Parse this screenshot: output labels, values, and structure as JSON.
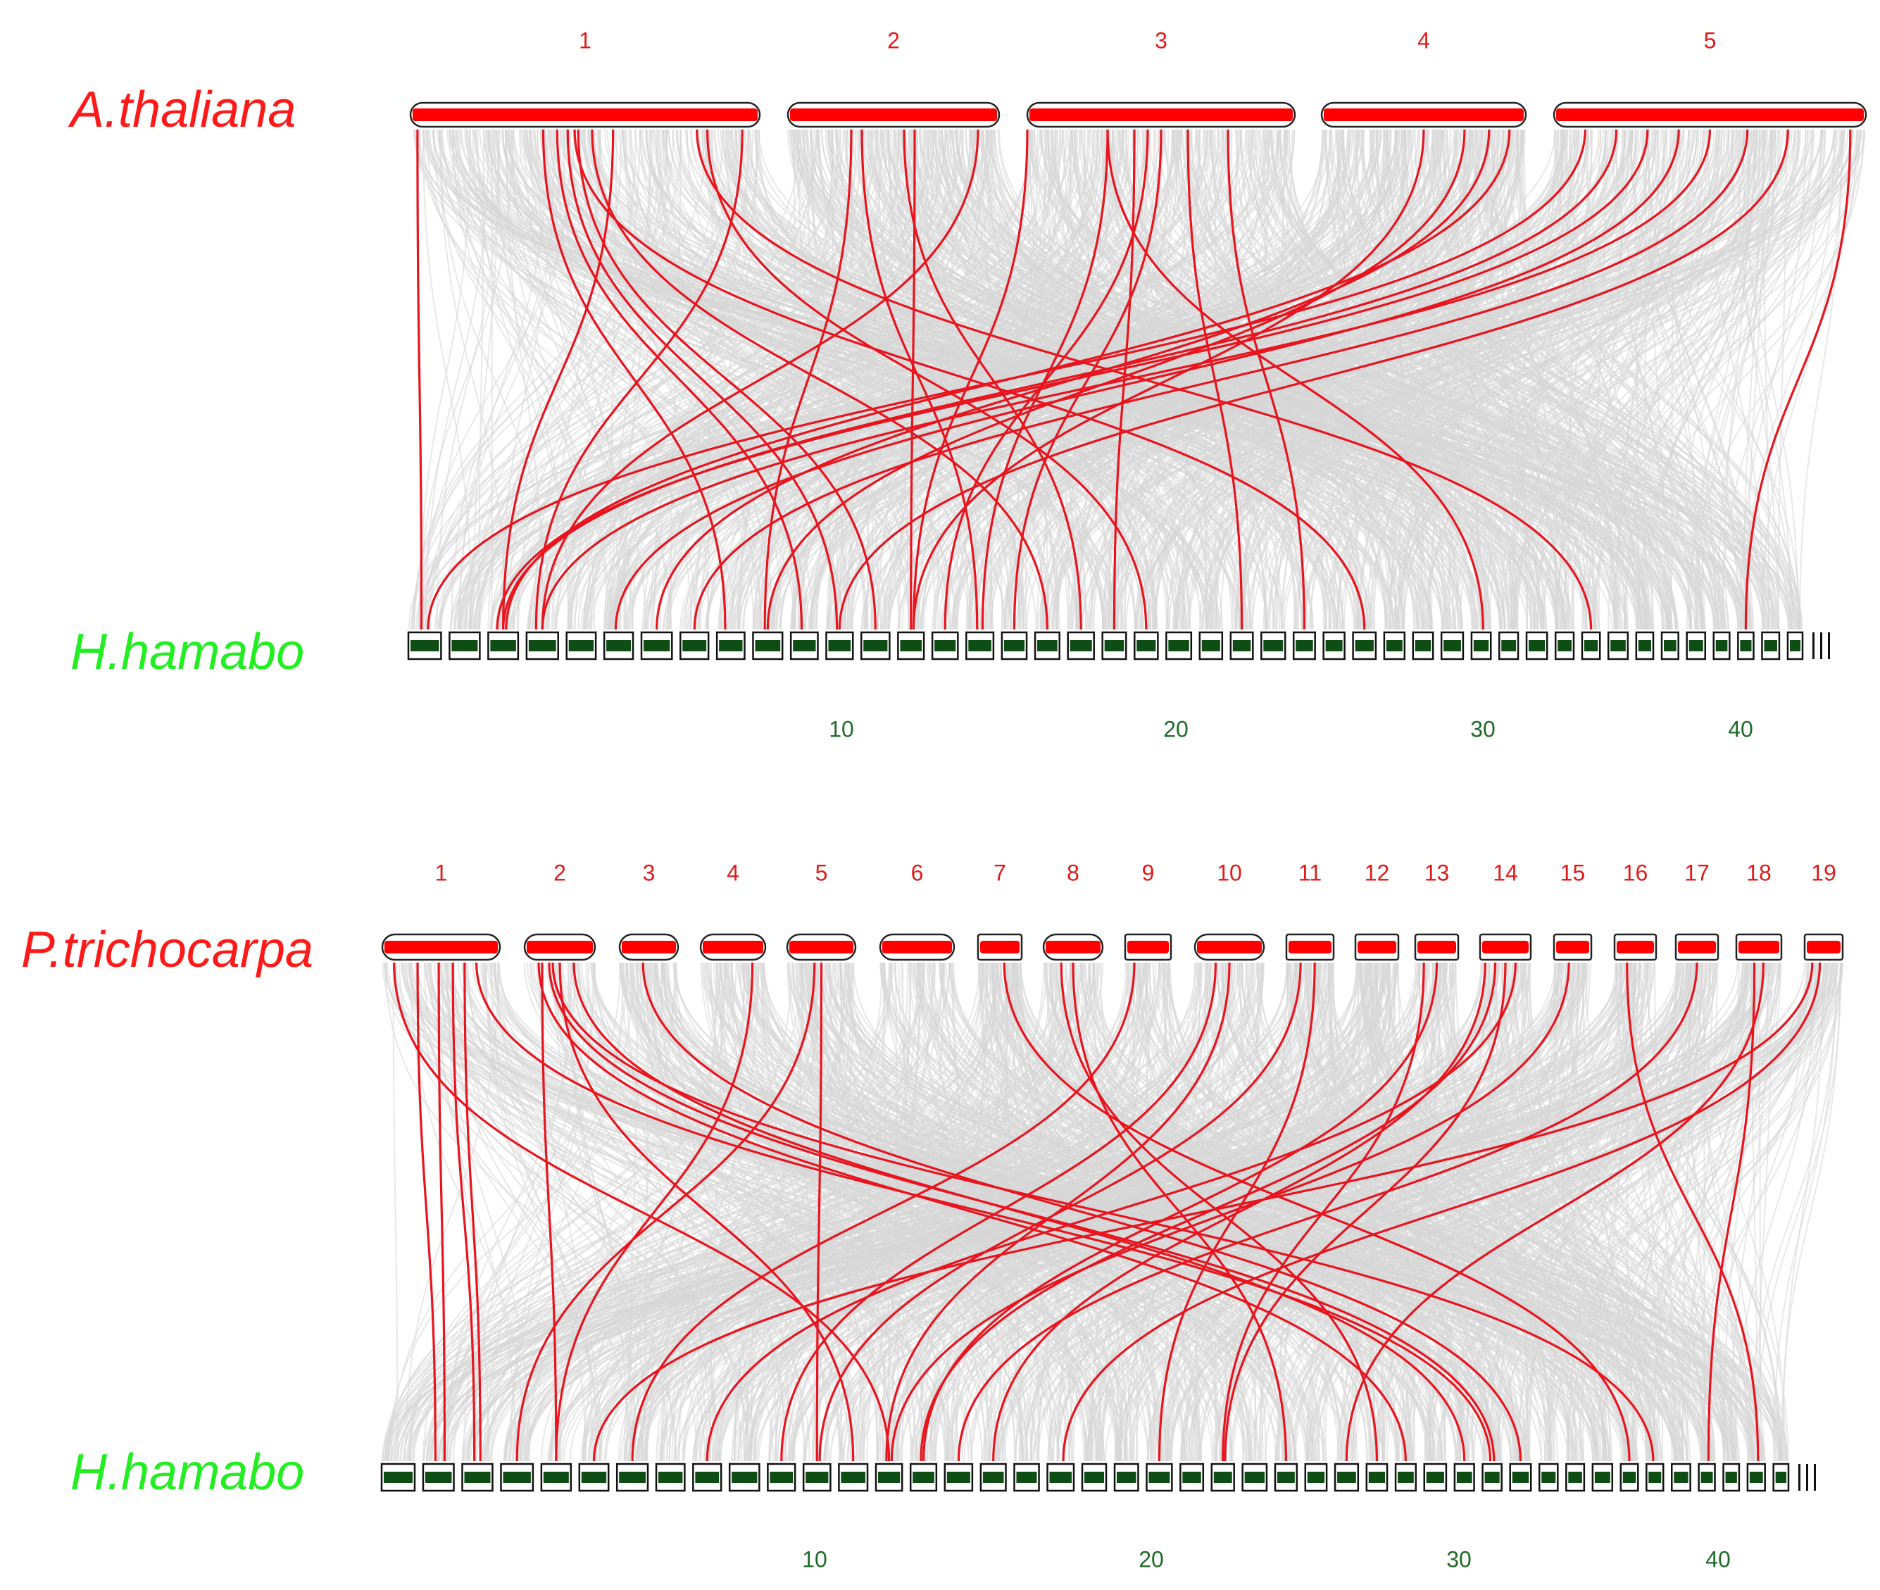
{
  "colors": {
    "species_top": "#ff1a1a",
    "species_bottom": "#22ee22",
    "chrom_top_fill": "#ff0000",
    "chrom_bottom_fill": "#0e4d14",
    "background_link": "#d6d6d6",
    "highlight_link": "#e8141e",
    "top_number": "#e11b1b",
    "bottom_number": "#1f6b2a"
  },
  "panels": [
    {
      "id": "arabidopsis",
      "top_species": "A.thaliana",
      "bottom_species": "H.hamabo",
      "top_chromosomes": [
        "1",
        "2",
        "3",
        "4",
        "5"
      ],
      "bottom_ticks": [
        "10",
        "20",
        "30",
        "40"
      ],
      "highlight_pairs": [
        [
          1,
          0.02,
          1,
          0.4
        ],
        [
          1,
          0.58,
          3,
          0.5
        ],
        [
          1,
          0.95,
          4,
          0.3
        ],
        [
          1,
          0.38,
          9,
          0.3
        ],
        [
          1,
          0.42,
          11,
          0.4
        ],
        [
          1,
          0.45,
          12,
          0.4
        ],
        [
          1,
          0.48,
          13,
          0.5
        ],
        [
          1,
          0.52,
          18,
          0.5
        ],
        [
          1,
          0.85,
          21,
          0.5
        ],
        [
          1,
          0.47,
          28,
          0.5
        ],
        [
          1,
          0.82,
          36,
          0.5
        ],
        [
          2,
          0.3,
          10,
          0.4
        ],
        [
          2,
          0.6,
          14,
          0.5
        ],
        [
          2,
          0.35,
          16,
          0.4
        ],
        [
          2,
          0.55,
          19,
          0.5
        ],
        [
          2,
          0.9,
          4,
          0.5
        ],
        [
          3,
          0.0,
          14,
          0.6
        ],
        [
          3,
          0.3,
          16,
          0.6
        ],
        [
          3,
          0.4,
          20,
          0.5
        ],
        [
          3,
          0.5,
          17,
          0.5
        ],
        [
          3,
          0.45,
          15,
          0.5
        ],
        [
          3,
          0.6,
          24,
          0.5
        ],
        [
          3,
          0.75,
          26,
          0.5
        ],
        [
          3,
          0.3,
          32,
          0.6
        ],
        [
          4,
          0.5,
          14,
          0.6
        ],
        [
          4,
          0.7,
          10,
          0.5
        ],
        [
          4,
          0.82,
          7,
          0.5
        ],
        [
          4,
          0.92,
          3,
          0.6
        ],
        [
          5,
          0.2,
          3,
          0.5
        ],
        [
          5,
          0.3,
          3,
          0.3
        ],
        [
          5,
          0.5,
          4,
          0.5
        ],
        [
          5,
          0.62,
          8,
          0.5
        ],
        [
          5,
          0.4,
          6,
          0.4
        ],
        [
          5,
          0.1,
          1,
          0.6
        ],
        [
          5,
          0.75,
          12,
          0.5
        ],
        [
          5,
          0.95,
          42,
          0.5
        ]
      ]
    },
    {
      "id": "populus",
      "top_species": "P.trichocarpa",
      "bottom_species": "H.hamabo",
      "top_chromosomes": [
        "1",
        "2",
        "3",
        "4",
        "5",
        "6",
        "7",
        "8",
        "9",
        "10",
        "11",
        "12",
        "13",
        "14",
        "15",
        "16",
        "17",
        "18",
        "19"
      ],
      "bottom_ticks": [
        "10",
        "20",
        "30",
        "40"
      ],
      "highlight_pairs": [
        [
          1,
          0.3,
          2,
          0.4
        ],
        [
          1,
          0.48,
          2,
          0.7
        ],
        [
          1,
          0.6,
          3,
          0.4
        ],
        [
          1,
          0.7,
          3,
          0.6
        ],
        [
          1,
          0.8,
          33,
          0.4
        ],
        [
          1,
          0.1,
          14,
          0.5
        ],
        [
          2,
          0.2,
          30,
          0.5
        ],
        [
          2,
          0.35,
          33,
          0.6
        ],
        [
          2,
          0.5,
          13,
          0.5
        ],
        [
          2,
          0.25,
          5,
          0.5
        ],
        [
          2,
          0.7,
          32,
          0.5
        ],
        [
          2,
          0.4,
          39,
          0.4
        ],
        [
          3,
          0.4,
          34,
          0.5
        ],
        [
          4,
          0.8,
          5,
          0.5
        ],
        [
          5,
          0.4,
          4,
          0.5
        ],
        [
          5,
          0.5,
          12,
          0.5
        ],
        [
          7,
          0.6,
          38,
          0.5
        ],
        [
          8,
          0.5,
          26,
          0.5
        ],
        [
          8,
          0.3,
          29,
          0.5
        ],
        [
          9,
          0.2,
          7,
          0.5
        ],
        [
          10,
          0.5,
          14,
          0.4
        ],
        [
          10,
          0.3,
          11,
          0.5
        ],
        [
          11,
          0.3,
          12,
          0.6
        ],
        [
          11,
          0.6,
          22,
          0.5
        ],
        [
          13,
          0.2,
          24,
          0.5
        ],
        [
          13,
          0.5,
          15,
          0.5
        ],
        [
          14,
          0.1,
          17,
          0.5
        ],
        [
          14,
          0.3,
          15,
          0.4
        ],
        [
          14,
          0.5,
          24,
          0.6
        ],
        [
          14,
          0.7,
          9,
          0.5
        ],
        [
          15,
          0.4,
          14,
          0.6
        ],
        [
          16,
          0.3,
          43,
          0.6
        ],
        [
          17,
          0.5,
          16,
          0.5
        ],
        [
          18,
          0.4,
          41,
          0.6
        ],
        [
          18,
          0.6,
          28,
          0.5
        ],
        [
          19,
          0.4,
          19,
          0.6
        ],
        [
          19,
          0.2,
          6,
          0.5
        ]
      ]
    }
  ]
}
